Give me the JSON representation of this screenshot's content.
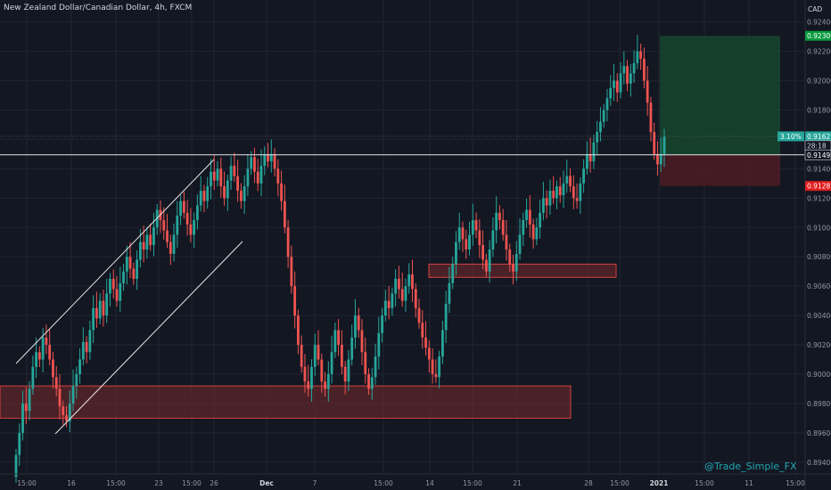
{
  "header": {
    "symbol_title": "New Zealand Dollar/Canadian Dollar, 4h, FXCM",
    "currency": "CAD"
  },
  "watermark": "@Trade_Simple_FX",
  "colors": {
    "background": "#131722",
    "grid": "#1f2433",
    "up_candle": "#26a69a",
    "down_candle": "#ef5350",
    "zone_fill": "#7a2a2e",
    "zone_border": "#d34040",
    "target_fill": "#17472d",
    "stop_fill": "#4a1c24",
    "trendline": "#e6e6e6",
    "axis_text": "#9598a1",
    "target_tag": "#089a3f",
    "stop_tag": "#e01d1d",
    "current_tag": "#26a69a"
  },
  "chart_data": {
    "type": "candlestick",
    "title": "New Zealand Dollar/Canadian Dollar, 4h, FXCM",
    "ylabel": "CAD",
    "ylim": [
      0.8932,
      0.9255
    ],
    "y_ticks": [
      0.924,
      0.922,
      0.92,
      0.918,
      0.916,
      0.914,
      0.912,
      0.91,
      0.908,
      0.906,
      0.904,
      0.902,
      0.9,
      0.898,
      0.896,
      0.894
    ],
    "x_ticks": [
      "15:00",
      "16",
      "15:00",
      "23",
      "15:00",
      "26",
      "Dec",
      "7",
      "15:00",
      "14",
      "15:00",
      "21",
      "28",
      "15:00",
      "2021",
      "15:00",
      "11",
      "15:00"
    ],
    "x_ticks_bold": [
      "Dec",
      "2021"
    ],
    "price_tags": [
      {
        "name": "target",
        "label": "0.92306",
        "value": 0.92306
      },
      {
        "name": "current",
        "label": "0.91621",
        "value": 0.91621,
        "percent_label": "3.10%"
      },
      {
        "name": "countdown",
        "label": "28:18",
        "value": 0.91558
      },
      {
        "name": "entry",
        "label": "0.91495",
        "value": 0.91495
      },
      {
        "name": "stop",
        "label": "0.91283",
        "value": 0.91283
      }
    ],
    "horizontal_line": 0.91495,
    "zones": [
      {
        "name": "support-zone-lower",
        "low": 0.897,
        "high": 0.8992
      },
      {
        "name": "support-zone-middle",
        "low": 0.9066,
        "high": 0.9075
      }
    ],
    "position": {
      "entry": 0.91495,
      "target": 0.92306,
      "stop": 0.91283,
      "percent": "3.10%"
    },
    "closes": [
      0.8945,
      0.896,
      0.898,
      0.8975,
      0.899,
      0.9005,
      0.9015,
      0.901,
      0.9025,
      0.902,
      0.901,
      0.8998,
      0.899,
      0.8978,
      0.8972,
      0.8968,
      0.898,
      0.8992,
      0.9,
      0.901,
      0.9022,
      0.9015,
      0.903,
      0.9045,
      0.9038,
      0.905,
      0.904,
      0.9055,
      0.9065,
      0.9058,
      0.905,
      0.9062,
      0.907,
      0.908,
      0.9072,
      0.9065,
      0.9078,
      0.909,
      0.9085,
      0.9095,
      0.9088,
      0.91,
      0.9112,
      0.9105,
      0.9098,
      0.909,
      0.9082,
      0.9095,
      0.9108,
      0.9118,
      0.911,
      0.9102,
      0.9095,
      0.9105,
      0.9115,
      0.9125,
      0.9118,
      0.9128,
      0.9138,
      0.9132,
      0.914,
      0.9128,
      0.912,
      0.9132,
      0.9142,
      0.9135,
      0.9125,
      0.9118,
      0.9128,
      0.914,
      0.9148,
      0.9138,
      0.913,
      0.9142,
      0.915,
      0.9145,
      0.915,
      0.914,
      0.913,
      0.9118,
      0.91,
      0.908,
      0.906,
      0.904,
      0.902,
      0.9005,
      0.8995,
      0.899,
      0.9005,
      0.902,
      0.901,
      0.8995,
      0.899,
      0.9,
      0.9015,
      0.903,
      0.902,
      0.9005,
      0.8995,
      0.901,
      0.9025,
      0.904,
      0.903,
      0.9015,
      0.9,
      0.899,
      0.8998,
      0.9012,
      0.9028,
      0.904,
      0.905,
      0.9045,
      0.9055,
      0.9065,
      0.9058,
      0.905,
      0.906,
      0.9068,
      0.9058,
      0.9045,
      0.9035,
      0.9025,
      0.9018,
      0.901,
      0.9,
      0.8998,
      0.9012,
      0.903,
      0.9048,
      0.9062,
      0.9075,
      0.909,
      0.91,
      0.9092,
      0.9085,
      0.9095,
      0.9105,
      0.9098,
      0.9088,
      0.9078,
      0.907,
      0.9085,
      0.9098,
      0.911,
      0.9105,
      0.9095,
      0.9085,
      0.9075,
      0.907,
      0.9082,
      0.9095,
      0.9105,
      0.9112,
      0.9102,
      0.9092,
      0.91,
      0.911,
      0.912,
      0.9115,
      0.9125,
      0.912,
      0.9128,
      0.9122,
      0.913,
      0.9135,
      0.9128,
      0.912,
      0.9118,
      0.913,
      0.914,
      0.915,
      0.9145,
      0.9158,
      0.9165,
      0.9172,
      0.918,
      0.9188,
      0.9195,
      0.92,
      0.9192,
      0.9205,
      0.921,
      0.9198,
      0.9205,
      0.9212,
      0.922,
      0.9215,
      0.92,
      0.9185,
      0.9165,
      0.915,
      0.9143,
      0.915,
      0.9162
    ]
  }
}
